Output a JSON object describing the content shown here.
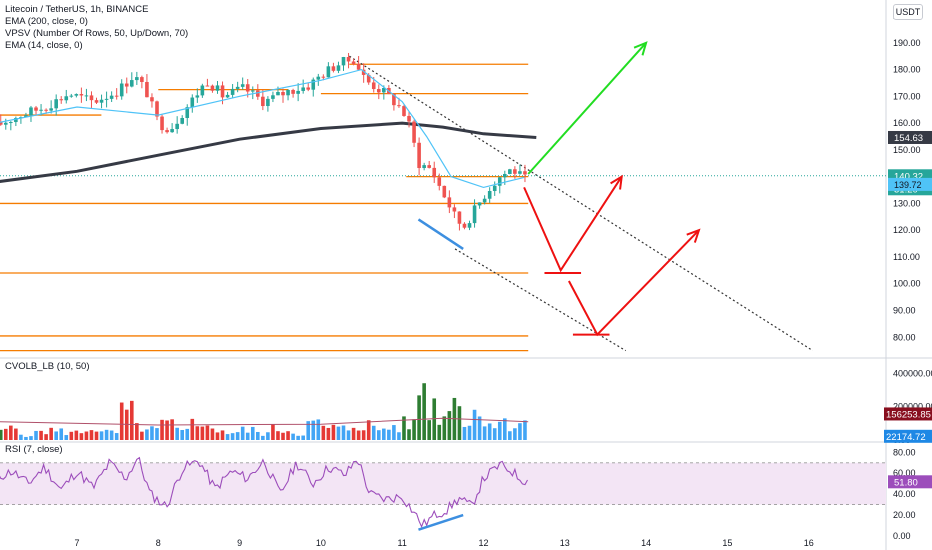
{
  "header": {
    "symbol_line": "Litecoin / TetherUS, 1h, BINANCE",
    "indicators": [
      "EMA (200, close, 0)",
      "VPSV (Number Of Rows, 50, Up/Down, 70)",
      "EMA (14, close, 0)"
    ],
    "currency": "USDT"
  },
  "colors": {
    "up": "#26a69a",
    "down": "#ef5350",
    "ema200": "#363a45",
    "ema14": "#4fc3f7",
    "levels": "#f57c00",
    "bull_arrow": "#22dd22",
    "bear_arrow": "#ee1111",
    "divergence": "#3d8fe0",
    "vol_up": "#2e7d32",
    "vol_down": "#e53935",
    "vol_neutral": "#42a5f5",
    "rsi": "#9c4dbb",
    "rsi_band": "#f3e5f5"
  },
  "chart_data": [
    {
      "type": "candlestick",
      "title": "Litecoin / TetherUS, 1h, BINANCE",
      "x_ticks": [
        "7",
        "8",
        "9",
        "10",
        "11",
        "12",
        "13",
        "14",
        "15",
        "16"
      ],
      "y_ticks": [
        "80.00",
        "90.00",
        "100.00",
        "110.00",
        "120.00",
        "130.00",
        "140.00",
        "150.00",
        "160.00",
        "170.00",
        "180.00",
        "190.00",
        "200.00"
      ],
      "ylim": [
        73,
        203
      ],
      "last_price": "140.32",
      "countdown": "51:20",
      "ema14_value": "139.72",
      "ema200_value": "154.63",
      "price_path": [
        [
          6.0,
          159
        ],
        [
          6.3,
          163
        ],
        [
          6.6,
          166
        ],
        [
          6.9,
          171
        ],
        [
          7.2,
          168
        ],
        [
          7.5,
          172
        ],
        [
          7.7,
          178
        ],
        [
          7.85,
          172
        ],
        [
          8.0,
          160
        ],
        [
          8.15,
          158
        ],
        [
          8.35,
          166
        ],
        [
          8.6,
          176
        ],
        [
          8.8,
          170
        ],
        [
          9.05,
          173
        ],
        [
          9.3,
          168
        ],
        [
          9.6,
          172
        ],
        [
          9.85,
          174
        ],
        [
          10.0,
          178
        ],
        [
          10.2,
          182
        ],
        [
          10.4,
          184
        ],
        [
          10.55,
          176
        ],
        [
          10.8,
          171
        ],
        [
          11.0,
          165
        ],
        [
          11.1,
          158
        ],
        [
          11.2,
          145
        ],
        [
          11.35,
          143
        ],
        [
          11.5,
          134
        ],
        [
          11.65,
          125
        ],
        [
          11.75,
          121
        ],
        [
          11.9,
          128
        ],
        [
          12.05,
          135
        ],
        [
          12.2,
          140
        ],
        [
          12.35,
          143
        ],
        [
          12.5,
          139
        ]
      ],
      "ema200_path": [
        [
          6.0,
          138
        ],
        [
          7.0,
          142
        ],
        [
          8.0,
          148
        ],
        [
          9.0,
          154
        ],
        [
          10.0,
          158
        ],
        [
          11.0,
          160
        ],
        [
          11.5,
          158.5
        ],
        [
          12.0,
          156
        ],
        [
          12.65,
          154.63
        ]
      ],
      "ema14_path": [
        [
          6.0,
          160
        ],
        [
          7.0,
          166
        ],
        [
          8.0,
          163
        ],
        [
          9.0,
          170
        ],
        [
          10.0,
          176
        ],
        [
          10.5,
          180
        ],
        [
          11.0,
          168
        ],
        [
          11.3,
          155
        ],
        [
          11.6,
          140
        ],
        [
          12.0,
          136
        ],
        [
          12.5,
          139.72
        ]
      ],
      "horizontal_levels": [
        {
          "y": 182,
          "x0": 10.35,
          "x1": 12.55
        },
        {
          "y": 171,
          "x0": 10.0,
          "x1": 12.55
        },
        {
          "y": 163,
          "x0": 6.0,
          "x1": 7.3
        },
        {
          "y": 172.5,
          "x0": 8.0,
          "x1": 9.6
        },
        {
          "y": 140,
          "x0": 11.05,
          "x1": 12.55
        },
        {
          "y": 130,
          "x0": 6.0,
          "x1": 12.55
        },
        {
          "y": 104,
          "x0": 6.0,
          "x1": 12.55
        },
        {
          "y": 80.5,
          "x0": 6.0,
          "x1": 12.55
        },
        {
          "y": 75,
          "x0": 6.0,
          "x1": 12.55
        }
      ],
      "trendlines": [
        {
          "from": [
            10.35,
            185
          ],
          "to": [
            16.05,
            75
          ],
          "style": "dotted"
        },
        {
          "from": [
            11.65,
            113
          ],
          "to": [
            13.75,
            75
          ],
          "style": "dotted"
        }
      ],
      "divergence_line": {
        "from": [
          11.2,
          124
        ],
        "to": [
          11.75,
          113
        ]
      },
      "projection_arrows": [
        {
          "role": "bull",
          "points": [
            [
              12.55,
              141
            ],
            [
              14.0,
              190
            ]
          ]
        },
        {
          "role": "bear",
          "points": [
            [
              12.5,
              136
            ],
            [
              12.95,
              105
            ],
            [
              13.7,
              140
            ]
          ]
        },
        {
          "role": "bear",
          "points": [
            [
              13.05,
              101
            ],
            [
              13.4,
              81
            ],
            [
              14.65,
              120
            ]
          ]
        }
      ],
      "bear_targets": [
        {
          "y": 104,
          "x0": 12.75,
          "x1": 13.2
        },
        {
          "y": 81,
          "x0": 13.1,
          "x1": 13.55
        }
      ]
    },
    {
      "type": "bar",
      "title": "CVOLB_LB (10, 50)",
      "y_ticks": [
        "0.00",
        "200000.00",
        "400000.00"
      ],
      "ylim": [
        0,
        480000
      ],
      "last_value": "156253.85",
      "secondary_value": "22174.72",
      "bars": [
        [
          6.0,
          60000,
          "u"
        ],
        [
          6.2,
          90000,
          "d"
        ],
        [
          6.4,
          50000,
          "n"
        ],
        [
          6.6,
          80000,
          "d"
        ],
        [
          6.8,
          70000,
          "n"
        ],
        [
          7.0,
          60000,
          "d"
        ],
        [
          7.2,
          100000,
          "d"
        ],
        [
          7.4,
          60000,
          "n"
        ],
        [
          7.6,
          220000,
          "d"
        ],
        [
          7.75,
          110000,
          "d"
        ],
        [
          7.9,
          80000,
          "n"
        ],
        [
          8.1,
          130000,
          "d"
        ],
        [
          8.3,
          70000,
          "n"
        ],
        [
          8.5,
          180000,
          "d"
        ],
        [
          8.7,
          90000,
          "d"
        ],
        [
          8.9,
          60000,
          "n"
        ],
        [
          9.1,
          80000,
          "n"
        ],
        [
          9.3,
          60000,
          "n"
        ],
        [
          9.5,
          90000,
          "d"
        ],
        [
          9.7,
          60000,
          "n"
        ],
        [
          9.9,
          130000,
          "n"
        ],
        [
          10.1,
          100000,
          "d"
        ],
        [
          10.3,
          90000,
          "n"
        ],
        [
          10.5,
          130000,
          "d"
        ],
        [
          10.7,
          90000,
          "n"
        ],
        [
          10.9,
          110000,
          "n"
        ],
        [
          11.1,
          130000,
          "u"
        ],
        [
          11.2,
          450000,
          "u"
        ],
        [
          11.35,
          280000,
          "u"
        ],
        [
          11.5,
          220000,
          "u"
        ],
        [
          11.7,
          480000,
          "u"
        ],
        [
          11.8,
          130000,
          "n"
        ],
        [
          11.95,
          220000,
          "n"
        ],
        [
          12.1,
          150000,
          "n"
        ],
        [
          12.3,
          130000,
          "n"
        ],
        [
          12.5,
          156253,
          "n"
        ]
      ]
    },
    {
      "type": "line",
      "title": "RSI (7, close)",
      "y_ticks": [
        "0.00",
        "20.00",
        "40.00",
        "60.00",
        "80.00"
      ],
      "ylim": [
        -2,
        88
      ],
      "band": [
        30,
        70
      ],
      "last_value": "51.80",
      "values": [
        [
          6.0,
          55
        ],
        [
          6.2,
          62
        ],
        [
          6.4,
          50
        ],
        [
          6.6,
          66
        ],
        [
          6.8,
          44
        ],
        [
          7.0,
          62
        ],
        [
          7.2,
          46
        ],
        [
          7.4,
          70
        ],
        [
          7.6,
          55
        ],
        [
          7.75,
          75
        ],
        [
          7.9,
          40
        ],
        [
          8.1,
          28
        ],
        [
          8.3,
          65
        ],
        [
          8.5,
          72
        ],
        [
          8.7,
          45
        ],
        [
          8.9,
          62
        ],
        [
          9.1,
          55
        ],
        [
          9.3,
          72
        ],
        [
          9.5,
          40
        ],
        [
          9.7,
          70
        ],
        [
          9.9,
          50
        ],
        [
          10.1,
          66
        ],
        [
          10.3,
          58
        ],
        [
          10.45,
          75
        ],
        [
          10.6,
          40
        ],
        [
          10.8,
          35
        ],
        [
          11.0,
          38
        ],
        [
          11.15,
          22
        ],
        [
          11.25,
          10
        ],
        [
          11.4,
          20
        ],
        [
          11.55,
          25
        ],
        [
          11.7,
          36
        ],
        [
          11.85,
          28
        ],
        [
          12.0,
          55
        ],
        [
          12.2,
          68
        ],
        [
          12.35,
          62
        ],
        [
          12.45,
          55
        ],
        [
          12.55,
          51.8
        ]
      ],
      "divergence_line": {
        "from": [
          11.2,
          6
        ],
        "to": [
          11.75,
          20
        ]
      }
    }
  ]
}
